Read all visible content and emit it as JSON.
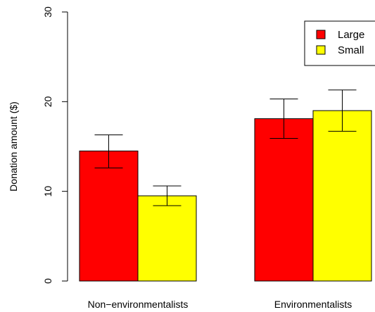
{
  "chart_data": {
    "type": "bar",
    "title": "",
    "xlabel": "",
    "ylabel": "Donation amount ($)",
    "ylim": [
      0,
      30
    ],
    "yticks": [
      "0",
      "10",
      "20",
      "30"
    ],
    "grid": false,
    "legend_position": "top-right",
    "categories": [
      "Non−environmentalists",
      "Environmentalists"
    ],
    "series": [
      {
        "name": "Large",
        "color": "#ff0000",
        "values": [
          14.5,
          18.1
        ],
        "error_low": [
          12.6,
          15.9
        ],
        "error_high": [
          16.3,
          20.3
        ]
      },
      {
        "name": "Small",
        "color": "#ffff00",
        "values": [
          9.5,
          19.0
        ],
        "error_low": [
          8.4,
          16.7
        ],
        "error_high": [
          10.6,
          21.3
        ]
      }
    ]
  }
}
